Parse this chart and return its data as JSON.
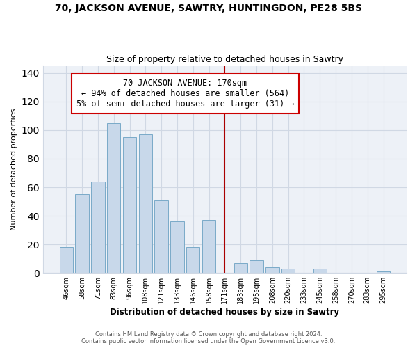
{
  "title": "70, JACKSON AVENUE, SAWTRY, HUNTINGDON, PE28 5BS",
  "subtitle": "Size of property relative to detached houses in Sawtry",
  "xlabel": "Distribution of detached houses by size in Sawtry",
  "ylabel": "Number of detached properties",
  "bar_labels": [
    "46sqm",
    "58sqm",
    "71sqm",
    "83sqm",
    "96sqm",
    "108sqm",
    "121sqm",
    "133sqm",
    "146sqm",
    "158sqm",
    "171sqm",
    "183sqm",
    "195sqm",
    "208sqm",
    "220sqm",
    "233sqm",
    "245sqm",
    "258sqm",
    "270sqm",
    "283sqm",
    "295sqm"
  ],
  "bar_values": [
    18,
    55,
    64,
    105,
    95,
    97,
    51,
    36,
    18,
    37,
    0,
    7,
    9,
    4,
    3,
    0,
    3,
    0,
    0,
    0,
    1
  ],
  "bar_color": "#c8d8ea",
  "bar_edge_color": "#7aaac8",
  "vline_x": 10,
  "vline_color": "#aa0000",
  "annotation_title": "70 JACKSON AVENUE: 170sqm",
  "annotation_line1": "← 94% of detached houses are smaller (564)",
  "annotation_line2": "5% of semi-detached houses are larger (31) →",
  "annotation_box_color": "#ffffff",
  "annotation_box_edge": "#cc0000",
  "ylim": [
    0,
    145
  ],
  "yticks": [
    0,
    20,
    40,
    60,
    80,
    100,
    120,
    140
  ],
  "footer1": "Contains HM Land Registry data © Crown copyright and database right 2024.",
  "footer2": "Contains public sector information licensed under the Open Government Licence v3.0.",
  "bg_color": "#edf1f7",
  "grid_color": "#d0d8e4",
  "title_fontsize": 10,
  "subtitle_fontsize": 9
}
